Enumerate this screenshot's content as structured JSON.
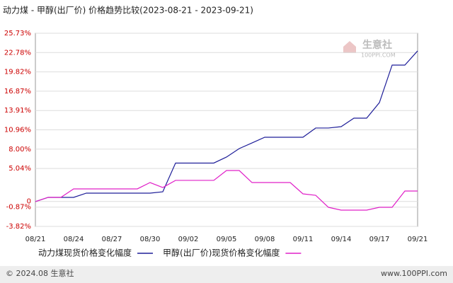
{
  "chart_data": {
    "type": "line",
    "title": "动力煤 - 甲醇(出厂价) 价格趋势比较(2023-08-21 - 2023-09-21)",
    "categories": [
      "08/21",
      null,
      null,
      "08/24",
      null,
      null,
      "08/27",
      null,
      null,
      "08/30",
      null,
      null,
      "09/02",
      null,
      null,
      "09/05",
      null,
      null,
      "09/08",
      null,
      null,
      "09/11",
      null,
      null,
      "09/14",
      null,
      null,
      "09/17",
      null,
      null,
      "09/21"
    ],
    "series": [
      {
        "name": "动力煤现货价格变化幅度",
        "color": "#1f1f99",
        "values": [
          -0.03,
          0.62,
          0.62,
          0.62,
          1.27,
          1.27,
          1.27,
          1.27,
          1.27,
          1.27,
          1.48,
          5.87,
          5.87,
          5.87,
          5.87,
          6.79,
          8.09,
          8.95,
          9.82,
          9.82,
          9.82,
          9.82,
          11.23,
          11.23,
          11.44,
          12.74,
          12.74,
          15.12,
          20.86,
          20.86,
          23.03
        ]
      },
      {
        "name": "甲醇(出厂价)现货价格变化幅度",
        "color": "#e020c8",
        "values": [
          -0.03,
          0.62,
          0.62,
          1.92,
          1.92,
          1.92,
          1.92,
          1.92,
          1.92,
          2.89,
          2.13,
          3.22,
          3.22,
          3.22,
          3.22,
          4.73,
          4.73,
          2.89,
          2.89,
          2.89,
          2.89,
          1.16,
          0.94,
          -0.9,
          -1.33,
          -1.33,
          -1.33,
          -0.9,
          -0.9,
          1.59,
          1.59
        ]
      }
    ],
    "ylim": [
      -3.82,
      25.73
    ],
    "yticks": [
      {
        "value": 25.73,
        "label": "25.73%"
      },
      {
        "value": 22.78,
        "label": "22.78%"
      },
      {
        "value": 19.82,
        "label": "19.82%"
      },
      {
        "value": 16.87,
        "label": "16.87%"
      },
      {
        "value": 13.91,
        "label": "13.91%"
      },
      {
        "value": 10.96,
        "label": "10.96%"
      },
      {
        "value": 8.0,
        "label": "8.00%"
      },
      {
        "value": 5.04,
        "label": "5.04%"
      },
      0,
      {
        "value": -0.87,
        "label": "-0.87%"
      },
      {
        "value": -3.82,
        "label": "-3.82%"
      }
    ],
    "grid": true,
    "watermark": {
      "name": "生意社",
      "url": "100PPI.COM"
    },
    "footer": {
      "copyright": "© 2024.08 生意社",
      "site": "www.100PPI.com"
    }
  }
}
